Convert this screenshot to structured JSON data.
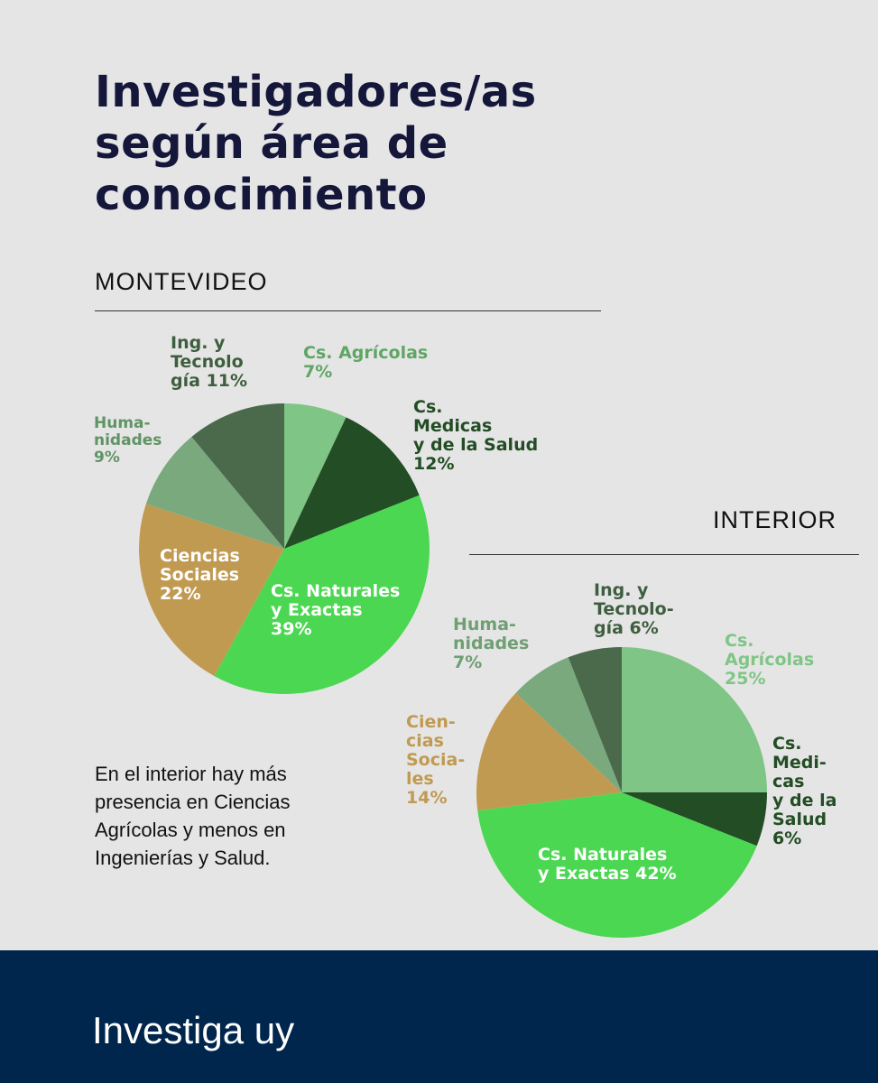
{
  "title": "Investigadores/as según área de conocimiento",
  "note": "En el interior hay más presencia en Ciencias Agrícolas y menos en Ingenierías y Salud.",
  "brand": "Investiga uy",
  "colors": {
    "cs_naturales": "#4bd751",
    "ciencias_sociales": "#c19a52",
    "humanidades": "#79a97c",
    "ing_tecnologia": "#4a6a4b",
    "cs_agricolas": "#7fc585",
    "cs_medicas": "#234d24",
    "footer": "#00264d"
  },
  "chart_data": [
    {
      "type": "pie",
      "title": "MONTEVIDEO",
      "slices": [
        {
          "key": "cs_agricolas",
          "label": "Cs. Agrícolas\n7%",
          "value": 7
        },
        {
          "key": "cs_medicas",
          "label": "Cs.\nMedicas\ny de la Salud\n12%",
          "value": 12
        },
        {
          "key": "cs_naturales",
          "label": "Cs. Naturales\ny Exactas\n39%",
          "value": 39
        },
        {
          "key": "ciencias_sociales",
          "label": "Ciencias\nSociales\n22%",
          "value": 22
        },
        {
          "key": "humanidades",
          "label": "Huma-\nnidades\n9%",
          "value": 9
        },
        {
          "key": "ing_tecnologia",
          "label": "Ing. y\nTecnolo\ngía 11%",
          "value": 11
        }
      ]
    },
    {
      "type": "pie",
      "title": "INTERIOR",
      "slices": [
        {
          "key": "cs_agricolas",
          "label": "Cs.\nAgrícolas\n25%",
          "value": 25
        },
        {
          "key": "cs_medicas",
          "label": "Cs.\nMedi-\ncas\ny de la\nSalud\n6%",
          "value": 6
        },
        {
          "key": "cs_naturales",
          "label": "Cs. Naturales\ny Exactas 42%",
          "value": 42
        },
        {
          "key": "ciencias_sociales",
          "label": "Cien-\ncias\nSocia-\nles\n14%",
          "value": 14
        },
        {
          "key": "humanidades",
          "label": "Huma-\nnidades\n7%",
          "value": 7
        },
        {
          "key": "ing_tecnologia",
          "label": "Ing. y\nTecnolo-\ngía 6%",
          "value": 6
        }
      ]
    }
  ]
}
